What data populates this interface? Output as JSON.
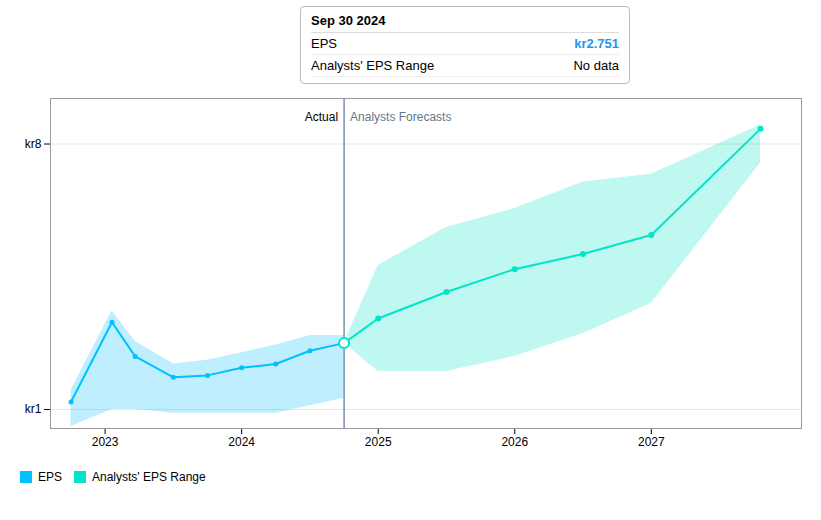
{
  "chart_data": {
    "type": "line",
    "series": [
      {
        "name": "EPS",
        "color": "#00c0ff",
        "x": [
          2022.75,
          2023.05,
          2023.22,
          2023.5,
          2023.75,
          2024.0,
          2024.25,
          2024.5,
          2024.75
        ],
        "values": [
          1.2,
          3.3,
          2.4,
          1.85,
          1.9,
          2.1,
          2.2,
          2.55,
          2.751
        ],
        "upper": [
          1.5,
          3.6,
          2.8,
          2.2,
          2.3,
          2.5,
          2.7,
          2.95,
          2.95
        ],
        "lower": [
          0.55,
          1.0,
          1.0,
          0.9,
          0.9,
          0.9,
          0.9,
          1.1,
          1.3
        ]
      },
      {
        "name": "Analysts' EPS Range",
        "color": "#00e5c8",
        "x": [
          2024.75,
          2025.0,
          2025.5,
          2026.0,
          2026.5,
          2027.0,
          2027.8
        ],
        "values": [
          2.751,
          3.4,
          4.1,
          4.7,
          5.1,
          5.6,
          8.4
        ],
        "upper": [
          2.751,
          4.8,
          5.8,
          6.3,
          7.0,
          7.2,
          8.5
        ],
        "lower": [
          2.751,
          2.0,
          2.0,
          2.4,
          3.0,
          3.8,
          7.5
        ]
      }
    ],
    "xlim": [
      2022.6,
      2028.1
    ],
    "xticks": [
      2023,
      2024,
      2025,
      2026,
      2027
    ],
    "ylim": [
      0.5,
      9.2
    ],
    "yticks": [
      {
        "value": 1.0,
        "label": "kr1"
      },
      {
        "value": 8.0,
        "label": "kr8"
      }
    ],
    "grid": true,
    "legend": "bottom left",
    "divider": {
      "x": 2024.75,
      "left_label": "Actual",
      "right_label": "Analysts Forecasts"
    },
    "tooltip": {
      "title": "Sep 30 2024",
      "rows": [
        {
          "label": "EPS",
          "value": "kr2.751"
        },
        {
          "label": "Analysts' EPS Range",
          "value": "No data"
        }
      ]
    }
  }
}
